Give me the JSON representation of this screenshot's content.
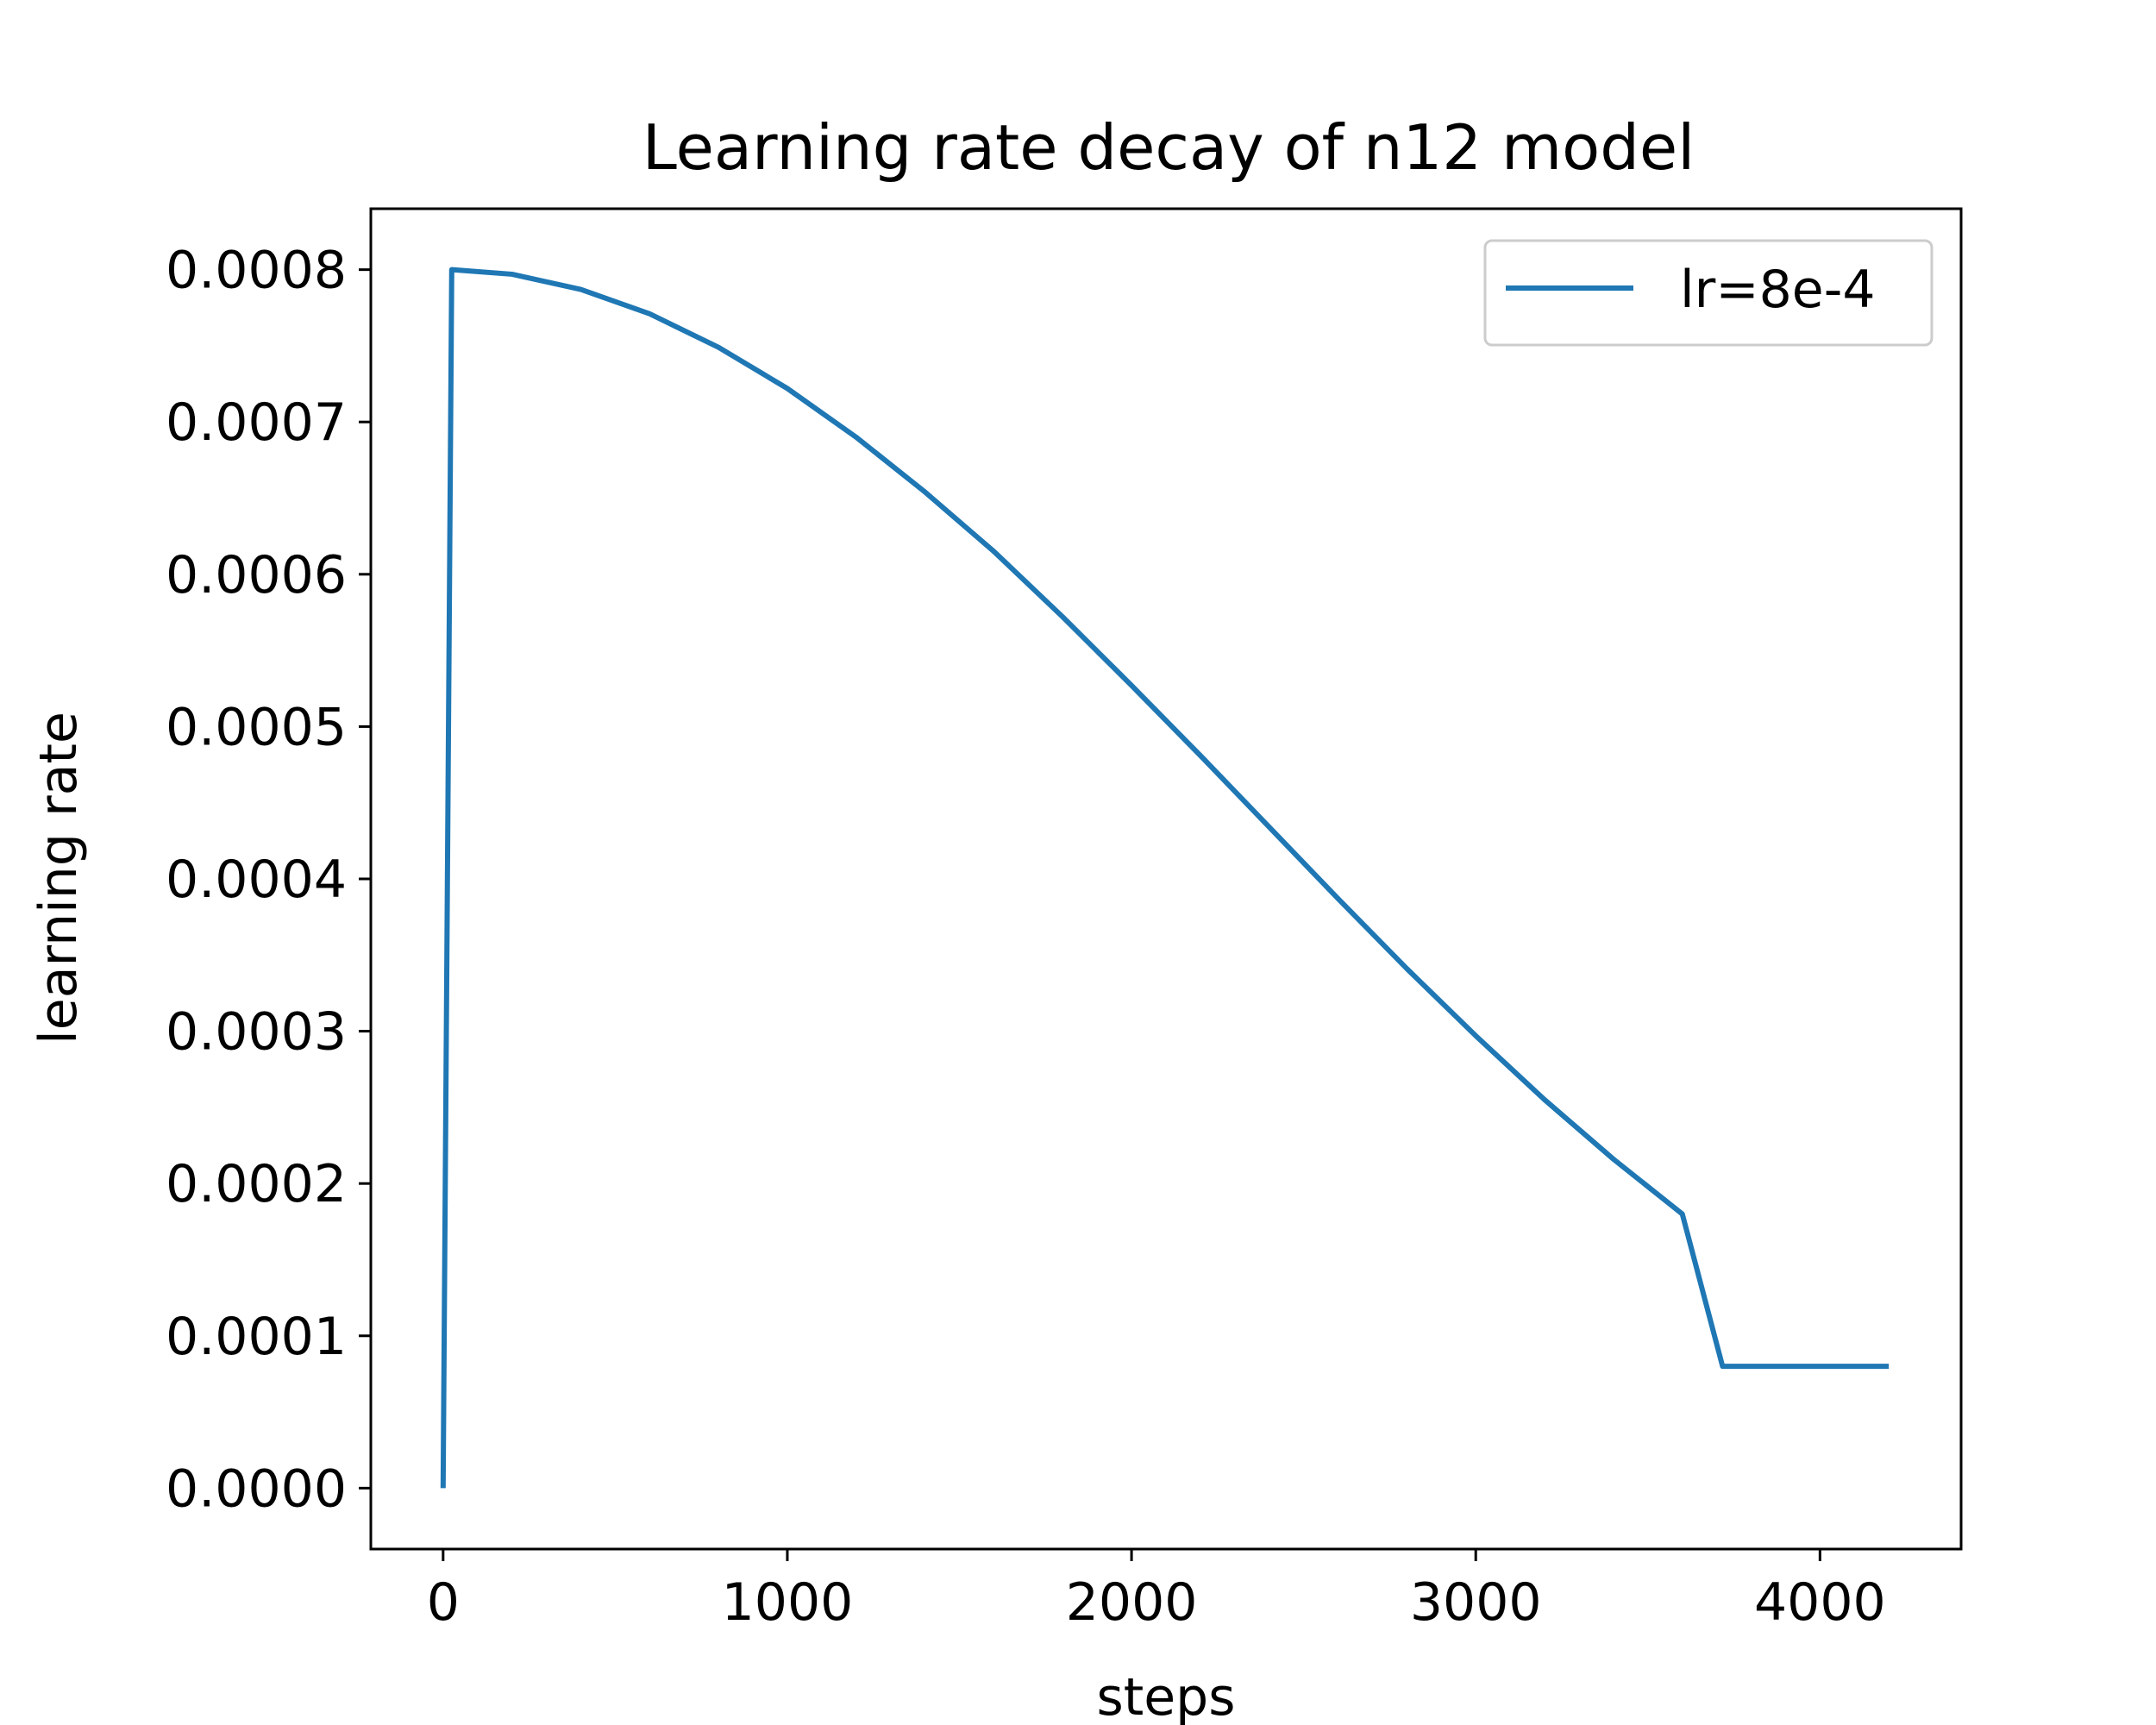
{
  "chart_data": {
    "type": "line",
    "title": "Learning rate decay of n12 model",
    "xlabel": "steps",
    "ylabel": "learning rate",
    "xlim": [
      -210,
      4410
    ],
    "ylim": [
      -4e-05,
      0.00084
    ],
    "xticks": [
      0,
      1000,
      2000,
      3000,
      4000
    ],
    "xtick_labels": [
      "0",
      "1000",
      "2000",
      "3000",
      "4000"
    ],
    "yticks": [
      0.0,
      0.0001,
      0.0002,
      0.0003,
      0.0004,
      0.0005,
      0.0006,
      0.0007,
      0.0008
    ],
    "ytick_labels": [
      "0.0000",
      "0.0001",
      "0.0002",
      "0.0003",
      "0.0004",
      "0.0005",
      "0.0006",
      "0.0007",
      "0.0008"
    ],
    "grid": false,
    "legend_position": "top-right",
    "series": [
      {
        "name": "lr=8e-4",
        "color": "#1f77b4",
        "x": [
          0,
          25,
          200,
          400,
          600,
          800,
          1000,
          1200,
          1400,
          1600,
          1800,
          2000,
          2200,
          2400,
          2600,
          2800,
          3000,
          3200,
          3400,
          3600,
          3717,
          4200
        ],
        "y": [
          0.0,
          0.0008,
          0.000797,
          0.000787,
          0.000771,
          0.000749,
          0.000722,
          0.00069,
          0.000654,
          0.000615,
          0.000572,
          0.000527,
          0.000481,
          0.000434,
          0.000387,
          0.000341,
          0.000297,
          0.000255,
          0.000216,
          0.00018,
          8e-05,
          8e-05
        ]
      }
    ]
  }
}
